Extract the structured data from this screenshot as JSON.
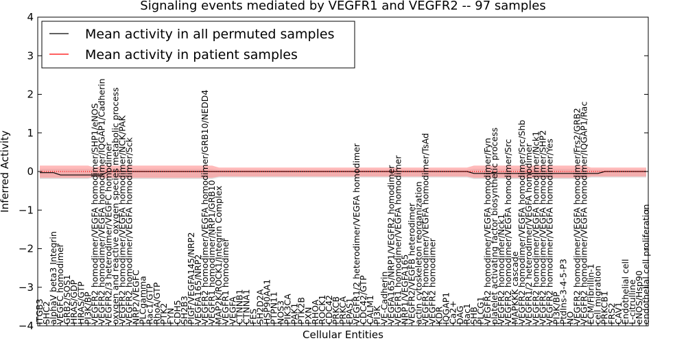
{
  "chart_data": {
    "type": "line",
    "title": "Signaling events mediated by VEGFR1 and VEGFR2 -- 97 samples",
    "xlabel": "Cellular Entities",
    "ylabel": "Inferred Activity",
    "ylim": [
      -4,
      4
    ],
    "yticks": [
      "−4",
      "−3",
      "−2",
      "−1",
      "0",
      "1",
      "2",
      "3",
      "4"
    ],
    "grid": false,
    "legend_position": "top-left",
    "colors": {
      "permuted_line": "#000000",
      "patient_line": "#ff0000",
      "permuted_band": "#c8c8c8",
      "patient_band": "#ff8c8c"
    },
    "series": [
      {
        "name": "Mean activity in all permuted samples",
        "color": "#000000",
        "values_description_mean": 0.0
      },
      {
        "name": "Mean activity in patient samples",
        "color": "#ff0000",
        "values_description_mean": 0.0
      }
    ],
    "categories": [
      "ITGB3",
      "SHC2",
      "alphaV beta3 Integrin",
      "VEGFC homodimer",
      "GRB2/SOS1",
      "HRAS/GDP",
      "HRAS/GTP",
      "PI3K/BP",
      "VEGFR2 homodimer/VEGFA homodimer/SHP1/eNOS",
      "VEGFR2 homodimer/VEGFA homodimer/IQGAP1/Cadherin",
      "VEGFR2/3 heterodimer/VEGFC homodimer",
      "oxygen and reactive oxygen species metabolic process",
      "VEGFR2 homodimer/VEGFA homodimer/NCK/PAK",
      "VEGFR2 homodimer/VEGFA homodimer/Sck",
      "NRP2/VEGFC",
      "PLCgamma",
      "Rac1/GTP",
      "RhoA/GTP",
      "PTK2",
      "FYN",
      "CDH5",
      "SH2B3",
      "PIGF/VEGFA145/NRP2",
      "VEGFA165/NRP2",
      "VEGFR2 homodimer/VEGFA homodimer/GRB10/NEDD4",
      "VEGFR1 homodimer/NRP1/GRB10",
      "MAP2K/ROCK1/Integrin Complex",
      "VEGFR1 homodimer",
      "VEGFA",
      "CTNNB1",
      "CTNNA1",
      "FES",
      "SH2D2A",
      "HSP90AA1",
      "PTPN11",
      "NOS3",
      "PIK3CA",
      "PAK1",
      "PTK2B",
      "PXN",
      "RHOA",
      "ROCK1",
      "CDC42",
      "PRKCB",
      "PRKCA",
      "EPAS1",
      "VEGFR1/2 heterodimer/VEGFA homodimer",
      "CDC42/GTP",
      "CALM1",
      "PI3K",
      "VE-Cadherin",
      "VEGFA165/NRP1/VEGFR2 homodimer",
      "VEGFR1 homodimer/VEGFA homodimer",
      "NRP1/VEGFA165",
      "VEGFR2/VEGFB heterodimer",
      "actin cytoskeleton reorganization",
      "VEGFR2 homodimer/VEGFA homodimer/TsAd",
      "VEGFR2 homodimer",
      "KDR",
      "IQGAP1",
      "Ca2+",
      "DAG",
      "Rac1",
      "SHB",
      "PLCG1",
      "VEGFR2 homodimer/VEGFA homodimer/Fyn",
      "platelet activating factor biosynthetic process",
      "VEGFR2 homodimer/Nck1",
      "VEGFR2 homodimer/VEGFA homodimer/Src",
      "MAPKKK cascade",
      "VEGFR2 homodimer/VEGFA homodimer/Src/Shb",
      "VEGFR1/2 heterodimer/VEGFA homodimer",
      "VEGFR2 homodimer/VEGFA homodimer/Nck1",
      "VEGFR2 homodimer/VEGFA homodimer/SHP2",
      "VEGFR2 homodimer/VEGFA homodimer/Yes",
      "PI3K/BP",
      "PtdIns-3-4-5-P3",
      "NO",
      "VEGFR2 homodimer/VEGFA homodimer/Frs2/GRB2",
      "VEGFR2 homodimer/VEGFA homodimer/IQGAP1/Rac",
      "ECM/Fibrillin-1",
      "cell migration",
      "PRKCB1",
      "FRS2",
      "CAV1",
      "Endothelial cell",
      "L-citrulline",
      "eNOS/Hsp90",
      "endothelial cell proliferation"
    ],
    "x_index_range": [
      0,
      88
    ],
    "permuted_mean": "~0.0 across all entities (slightly below 0, -0.03 to -0.09 near start)",
    "patient_mean": "~0.0 across all entities",
    "band_range_approx": [
      -0.2,
      0.2
    ]
  }
}
